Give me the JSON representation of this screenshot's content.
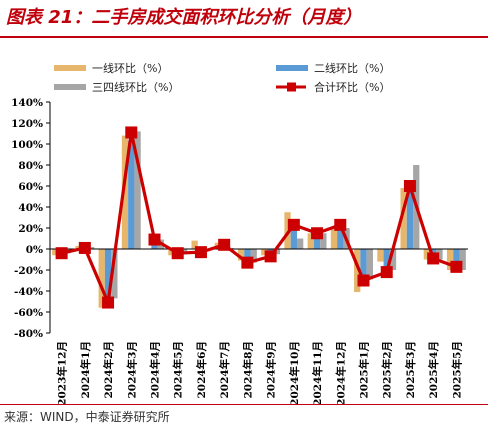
{
  "title": "图表 21：二手房成交面积环比分析（月度）",
  "source": "来源：WIND，中泰证券研究所",
  "colors": {
    "tier1": "#e6b66c",
    "tier2": "#5b9bd5",
    "tier34": "#a6a6a6",
    "total": "#cc0000",
    "accent": "#c00010"
  },
  "chart_data": {
    "type": "bar",
    "categories": [
      "2023年12月",
      "2024年1月",
      "2024年2月",
      "2024年3月",
      "2024年4月",
      "2024年5月",
      "2024年6月",
      "2024年7月",
      "2024年8月",
      "2024年9月",
      "2024年10月",
      "2024年11月",
      "2024年12月",
      "2025年1月",
      "2025年2月",
      "2025年3月",
      "2025年4月",
      "2025年5月"
    ],
    "series": [
      {
        "name": "一线环比（%）",
        "type": "bar",
        "color": "#e6b66c",
        "values": [
          -6,
          3,
          -56,
          108,
          0,
          -6,
          8,
          6,
          -11,
          -6,
          35,
          15,
          19,
          -41,
          -12,
          58,
          -10,
          -20
        ]
      },
      {
        "name": "二线环比（%）",
        "type": "bar",
        "color": "#5b9bd5",
        "values": [
          -5,
          -1,
          -55,
          103,
          6,
          -3,
          -3,
          4,
          -14,
          -5,
          26,
          11,
          20,
          -30,
          -23,
          62,
          -12,
          -19
        ]
      },
      {
        "name": "三四线环比（%）",
        "type": "bar",
        "color": "#a6a6a6",
        "values": [
          -4,
          2,
          -47,
          112,
          9,
          -3,
          -2,
          1,
          -13,
          -5,
          10,
          15,
          20,
          -29,
          -20,
          80,
          -10,
          -20
        ]
      },
      {
        "name": "合计环比（%）",
        "type": "line",
        "color": "#cc0000",
        "values": [
          -4,
          1,
          -51,
          111,
          9,
          -4,
          -3,
          4,
          -13,
          -7,
          23,
          15,
          23,
          -30,
          -22,
          60,
          -9,
          -17
        ]
      }
    ],
    "ylim": [
      -80,
      140
    ],
    "yticks": [
      "-80%",
      "-60%",
      "-40%",
      "-20%",
      "0%",
      "20%",
      "40%",
      "60%",
      "80%",
      "100%",
      "120%",
      "140%"
    ],
    "ytick_values": [
      -80,
      -60,
      -40,
      -20,
      0,
      20,
      40,
      60,
      80,
      100,
      120,
      140
    ],
    "xlabel": "",
    "ylabel": "",
    "grid": false,
    "legend_position": "top"
  }
}
